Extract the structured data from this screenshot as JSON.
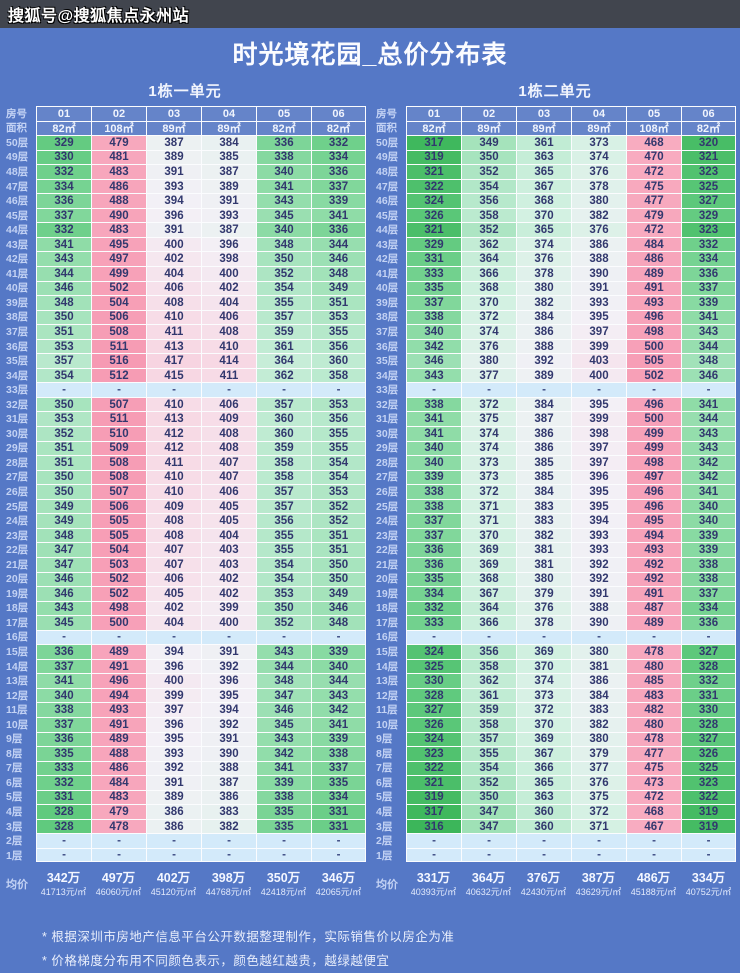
{
  "watermark": "搜狐号@搜狐焦点永州站",
  "title": "时光境花园_总价分布表",
  "row_headers": {
    "room": "房号",
    "area": "面积",
    "avg": "均价"
  },
  "dash": "-",
  "floors": [
    "50层",
    "49层",
    "48层",
    "47层",
    "46层",
    "45层",
    "44层",
    "43层",
    "42层",
    "41层",
    "40层",
    "39层",
    "38层",
    "37层",
    "36层",
    "35层",
    "34层",
    "33层",
    "32层",
    "31层",
    "30层",
    "29层",
    "28层",
    "27层",
    "26层",
    "25层",
    "24层",
    "23层",
    "22层",
    "21层",
    "20层",
    "19层",
    "18层",
    "17层",
    "16层",
    "15层",
    "14层",
    "13层",
    "12层",
    "11层",
    "10层",
    "9层",
    "8层",
    "7层",
    "6层",
    "5层",
    "4层",
    "3层",
    "2层",
    "1层"
  ],
  "colors": {
    "page_bg": "#5578c6",
    "topbar_bg": "#41454e",
    "header_cell_bg": "#6584c9",
    "dash_cell_bg": "#d3eafa",
    "cell_text": "#32386e",
    "grid_line": "#fbfcfe"
  },
  "price_color_scale": [
    {
      "value": 316,
      "color": "#3CB65A"
    },
    {
      "value": 328,
      "color": "#60CA7E"
    },
    {
      "value": 340,
      "color": "#8CDBA5"
    },
    {
      "value": 355,
      "color": "#B5E8CA"
    },
    {
      "value": 370,
      "color": "#D3F1E2"
    },
    {
      "value": 383,
      "color": "#E8F1F0"
    },
    {
      "value": 395,
      "color": "#F3F0F6"
    },
    {
      "value": 410,
      "color": "#F7DCE7"
    },
    {
      "value": 432,
      "color": "#F8C4D4"
    },
    {
      "value": 462,
      "color": "#F8AEC2"
    },
    {
      "value": 520,
      "color": "#F699B2"
    }
  ],
  "units": [
    {
      "name": "1栋一单元",
      "rooms": [
        "01",
        "02",
        "03",
        "04",
        "05",
        "06"
      ],
      "areas": [
        "82㎡",
        "108㎡",
        "89㎡",
        "89㎡",
        "82㎡",
        "82㎡"
      ],
      "rows": [
        [
          329,
          479,
          387,
          384,
          336,
          332
        ],
        [
          330,
          481,
          389,
          385,
          338,
          334
        ],
        [
          332,
          483,
          391,
          387,
          340,
          336
        ],
        [
          334,
          486,
          393,
          389,
          341,
          337
        ],
        [
          336,
          488,
          394,
          391,
          343,
          339
        ],
        [
          337,
          490,
          396,
          393,
          345,
          341
        ],
        [
          332,
          483,
          391,
          387,
          340,
          336
        ],
        [
          341,
          495,
          400,
          396,
          348,
          344
        ],
        [
          343,
          497,
          402,
          398,
          350,
          346
        ],
        [
          344,
          499,
          404,
          400,
          352,
          348
        ],
        [
          346,
          502,
          406,
          402,
          354,
          349
        ],
        [
          348,
          504,
          408,
          404,
          355,
          351
        ],
        [
          350,
          506,
          410,
          406,
          357,
          353
        ],
        [
          351,
          508,
          411,
          408,
          359,
          355
        ],
        [
          353,
          511,
          413,
          410,
          361,
          356
        ],
        [
          357,
          516,
          417,
          414,
          364,
          360
        ],
        [
          354,
          512,
          415,
          411,
          362,
          358
        ],
        null,
        [
          350,
          507,
          410,
          406,
          357,
          353
        ],
        [
          353,
          511,
          413,
          409,
          360,
          356
        ],
        [
          352,
          510,
          412,
          408,
          360,
          355
        ],
        [
          351,
          509,
          412,
          408,
          359,
          355
        ],
        [
          351,
          508,
          411,
          407,
          358,
          354
        ],
        [
          350,
          508,
          410,
          407,
          358,
          354
        ],
        [
          350,
          507,
          410,
          406,
          357,
          353
        ],
        [
          349,
          506,
          409,
          405,
          357,
          352
        ],
        [
          349,
          505,
          408,
          405,
          356,
          352
        ],
        [
          348,
          505,
          408,
          404,
          355,
          351
        ],
        [
          347,
          504,
          407,
          403,
          355,
          351
        ],
        [
          347,
          503,
          407,
          403,
          354,
          350
        ],
        [
          346,
          502,
          406,
          402,
          354,
          350
        ],
        [
          346,
          502,
          405,
          402,
          353,
          349
        ],
        [
          343,
          498,
          402,
          399,
          350,
          346
        ],
        [
          345,
          500,
          404,
          400,
          352,
          348
        ],
        null,
        [
          336,
          489,
          394,
          391,
          343,
          339
        ],
        [
          337,
          491,
          396,
          392,
          344,
          340
        ],
        [
          341,
          496,
          400,
          396,
          348,
          344
        ],
        [
          340,
          494,
          399,
          395,
          347,
          343
        ],
        [
          338,
          493,
          397,
          394,
          346,
          342
        ],
        [
          337,
          491,
          396,
          392,
          345,
          341
        ],
        [
          336,
          489,
          395,
          391,
          343,
          339
        ],
        [
          335,
          488,
          393,
          390,
          342,
          338
        ],
        [
          333,
          486,
          392,
          388,
          341,
          337
        ],
        [
          332,
          484,
          391,
          387,
          339,
          335
        ],
        [
          331,
          483,
          389,
          386,
          338,
          334
        ],
        [
          328,
          479,
          386,
          383,
          335,
          331
        ],
        [
          328,
          478,
          386,
          382,
          335,
          331
        ],
        null,
        null
      ],
      "avg_prices": [
        "342万",
        "497万",
        "402万",
        "398万",
        "350万",
        "346万"
      ],
      "avg_unit_prices": [
        "41713元/㎡",
        "46060元/㎡",
        "45120元/㎡",
        "44768元/㎡",
        "42418元/㎡",
        "42065元/㎡"
      ]
    },
    {
      "name": "1栋二单元",
      "rooms": [
        "01",
        "02",
        "03",
        "04",
        "05",
        "06"
      ],
      "areas": [
        "82㎡",
        "89㎡",
        "89㎡",
        "89㎡",
        "108㎡",
        "82㎡"
      ],
      "rows": [
        [
          317,
          349,
          361,
          373,
          468,
          320
        ],
        [
          319,
          350,
          363,
          374,
          470,
          321
        ],
        [
          321,
          352,
          365,
          376,
          472,
          323
        ],
        [
          322,
          354,
          367,
          378,
          475,
          325
        ],
        [
          324,
          356,
          368,
          380,
          477,
          327
        ],
        [
          326,
          358,
          370,
          382,
          479,
          329
        ],
        [
          321,
          352,
          365,
          376,
          472,
          323
        ],
        [
          329,
          362,
          374,
          386,
          484,
          332
        ],
        [
          331,
          364,
          376,
          388,
          486,
          334
        ],
        [
          333,
          366,
          378,
          390,
          489,
          336
        ],
        [
          335,
          368,
          380,
          391,
          491,
          337
        ],
        [
          337,
          370,
          382,
          393,
          493,
          339
        ],
        [
          338,
          372,
          384,
          395,
          496,
          341
        ],
        [
          340,
          374,
          386,
          397,
          498,
          343
        ],
        [
          342,
          376,
          388,
          399,
          500,
          344
        ],
        [
          346,
          380,
          392,
          403,
          505,
          348
        ],
        [
          343,
          377,
          389,
          400,
          502,
          346
        ],
        null,
        [
          338,
          372,
          384,
          395,
          496,
          341
        ],
        [
          341,
          375,
          387,
          399,
          500,
          344
        ],
        [
          341,
          374,
          386,
          398,
          499,
          343
        ],
        [
          340,
          374,
          386,
          397,
          499,
          343
        ],
        [
          340,
          373,
          385,
          397,
          498,
          342
        ],
        [
          339,
          373,
          385,
          396,
          497,
          342
        ],
        [
          338,
          372,
          384,
          395,
          496,
          341
        ],
        [
          338,
          371,
          383,
          395,
          496,
          340
        ],
        [
          337,
          371,
          383,
          394,
          495,
          340
        ],
        [
          337,
          370,
          382,
          393,
          494,
          339
        ],
        [
          336,
          369,
          381,
          393,
          493,
          339
        ],
        [
          336,
          369,
          381,
          392,
          492,
          338
        ],
        [
          335,
          368,
          380,
          392,
          492,
          338
        ],
        [
          334,
          367,
          379,
          391,
          491,
          337
        ],
        [
          332,
          364,
          376,
          388,
          487,
          334
        ],
        [
          333,
          366,
          378,
          390,
          489,
          336
        ],
        null,
        [
          324,
          356,
          369,
          380,
          478,
          327
        ],
        [
          325,
          358,
          370,
          381,
          480,
          328
        ],
        [
          330,
          362,
          374,
          386,
          485,
          332
        ],
        [
          328,
          361,
          373,
          384,
          483,
          331
        ],
        [
          327,
          359,
          372,
          383,
          482,
          330
        ],
        [
          326,
          358,
          370,
          382,
          480,
          328
        ],
        [
          324,
          357,
          369,
          380,
          478,
          327
        ],
        [
          323,
          355,
          367,
          379,
          477,
          326
        ],
        [
          322,
          354,
          366,
          377,
          475,
          325
        ],
        [
          321,
          352,
          365,
          376,
          473,
          323
        ],
        [
          319,
          350,
          363,
          375,
          472,
          322
        ],
        [
          317,
          347,
          360,
          372,
          468,
          319
        ],
        [
          316,
          347,
          360,
          371,
          467,
          319
        ],
        null,
        null
      ],
      "avg_prices": [
        "331万",
        "364万",
        "376万",
        "387万",
        "486万",
        "334万"
      ],
      "avg_unit_prices": [
        "40393元/㎡",
        "40632元/㎡",
        "42430元/㎡",
        "43629元/㎡",
        "45188元/㎡",
        "40752元/㎡"
      ]
    }
  ],
  "footnotes": [
    "* 根据深圳市房地产信息平台公开数据整理制作，实际销售价以房企为准",
    "* 价格梯度分布用不同颜色表示，颜色越红越贵，越绿越便宜"
  ]
}
